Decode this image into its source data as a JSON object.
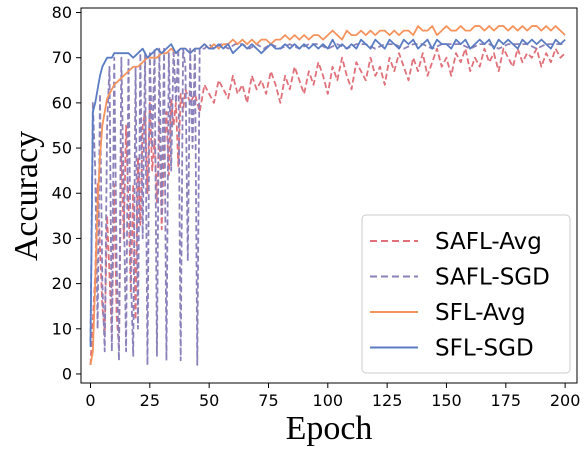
{
  "chart_data": {
    "type": "line",
    "title": "",
    "xlabel": "Epoch",
    "ylabel": "Accuracy",
    "xlim": [
      -4,
      205
    ],
    "ylim": [
      -2,
      81
    ],
    "xticks": [
      0,
      25,
      50,
      75,
      100,
      125,
      150,
      175,
      200
    ],
    "yticks": [
      0,
      10,
      20,
      30,
      40,
      50,
      60,
      70,
      80
    ],
    "grid": false,
    "legend_position": "bottom-right",
    "series": [
      {
        "name": "SAFL-Avg",
        "color": "#e0707a",
        "dash": "dashed",
        "x": [
          0,
          1,
          2,
          3,
          4,
          5,
          6,
          7,
          8,
          9,
          10,
          11,
          12,
          13,
          14,
          15,
          16,
          17,
          18,
          19,
          20,
          21,
          22,
          23,
          24,
          25,
          26,
          27,
          28,
          29,
          30,
          31,
          32,
          33,
          34,
          35,
          36,
          37,
          38,
          39,
          40,
          42,
          44,
          46,
          48,
          50,
          52,
          54,
          56,
          58,
          60,
          62,
          64,
          66,
          68,
          70,
          72,
          74,
          76,
          78,
          80,
          82,
          84,
          86,
          88,
          90,
          92,
          94,
          96,
          98,
          100,
          102,
          104,
          106,
          108,
          110,
          112,
          114,
          116,
          118,
          120,
          122,
          124,
          126,
          128,
          130,
          132,
          134,
          136,
          138,
          140,
          142,
          144,
          146,
          148,
          150,
          152,
          154,
          156,
          158,
          160,
          162,
          164,
          166,
          168,
          170,
          172,
          174,
          176,
          178,
          180,
          182,
          184,
          186,
          188,
          190,
          192,
          194,
          196,
          198,
          200
        ],
        "values": [
          2,
          12,
          22,
          42,
          28,
          15,
          9,
          35,
          22,
          8,
          42,
          13,
          6,
          50,
          30,
          55,
          38,
          18,
          42,
          12,
          48,
          33,
          55,
          58,
          40,
          60,
          45,
          52,
          38,
          56,
          32,
          50,
          58,
          44,
          61,
          55,
          60,
          46,
          62,
          58,
          63,
          60,
          62,
          58,
          64,
          62,
          60,
          65,
          63,
          61,
          66,
          62,
          64,
          60,
          66,
          63,
          65,
          62,
          67,
          64,
          60,
          66,
          63,
          68,
          65,
          62,
          67,
          64,
          69,
          66,
          62,
          68,
          65,
          70,
          66,
          63,
          69,
          67,
          65,
          70,
          66,
          68,
          64,
          70,
          67,
          71,
          68,
          65,
          70,
          67,
          71,
          66,
          69,
          72,
          68,
          70,
          66,
          71,
          69,
          72,
          67,
          70,
          68,
          72,
          69,
          71,
          67,
          72,
          70,
          68,
          72,
          69,
          71,
          70,
          72,
          68,
          71,
          69,
          72,
          70,
          71
        ]
      },
      {
        "name": "SAFL-SGD",
        "color": "#8c80bb",
        "dash": "dashed",
        "x": [
          0,
          1,
          2,
          3,
          4,
          5,
          6,
          7,
          8,
          9,
          10,
          11,
          12,
          13,
          14,
          15,
          16,
          17,
          18,
          19,
          20,
          21,
          22,
          23,
          24,
          25,
          26,
          27,
          28,
          29,
          30,
          31,
          32,
          33,
          34,
          35,
          36,
          37,
          38,
          39,
          40,
          41,
          42,
          43,
          44,
          45,
          46,
          48,
          50,
          52,
          55,
          58,
          61,
          64,
          67,
          70,
          73,
          76,
          80,
          84,
          88,
          92,
          96,
          100,
          104,
          108,
          112,
          116,
          120,
          124,
          128,
          132,
          136,
          140,
          144,
          148,
          152,
          156,
          160,
          164,
          168,
          172,
          176,
          180,
          184,
          188,
          192,
          196,
          200
        ],
        "values": [
          7,
          60,
          45,
          10,
          62,
          20,
          5,
          55,
          68,
          5,
          70,
          25,
          3,
          70,
          40,
          5,
          70,
          22,
          4,
          68,
          10,
          71,
          30,
          71,
          2,
          71,
          50,
          72,
          4,
          72,
          35,
          72,
          3,
          71,
          45,
          72,
          60,
          72,
          3,
          72,
          68,
          25,
          72,
          50,
          72,
          2,
          72,
          72,
          73,
          72,
          73,
          72,
          73,
          73,
          72,
          73,
          72,
          73,
          72,
          73,
          72,
          73,
          73,
          72,
          73,
          72,
          73,
          73,
          72,
          73,
          73,
          72,
          73,
          73,
          72,
          73,
          73,
          73,
          72,
          73,
          73,
          72,
          73,
          73,
          73,
          72,
          73,
          73,
          73
        ]
      },
      {
        "name": "SFL-Avg",
        "color": "#f5935d",
        "dash": "solid",
        "x": [
          0,
          1,
          2,
          3,
          4,
          5,
          6,
          7,
          8,
          9,
          10,
          12,
          14,
          16,
          18,
          20,
          22,
          24,
          26,
          28,
          30,
          32,
          34,
          36,
          38,
          40,
          42,
          44,
          46,
          48,
          50,
          52,
          54,
          56,
          58,
          60,
          62,
          64,
          66,
          68,
          70,
          72,
          74,
          76,
          78,
          80,
          82,
          84,
          86,
          88,
          90,
          92,
          94,
          96,
          98,
          100,
          102,
          104,
          106,
          108,
          110,
          112,
          114,
          116,
          118,
          120,
          122,
          124,
          126,
          128,
          130,
          132,
          134,
          136,
          138,
          140,
          142,
          144,
          146,
          148,
          150,
          152,
          154,
          156,
          158,
          160,
          162,
          164,
          166,
          168,
          170,
          172,
          174,
          176,
          178,
          180,
          182,
          184,
          186,
          188,
          190,
          192,
          194,
          196,
          198,
          200
        ],
        "values": [
          2,
          5,
          20,
          38,
          48,
          55,
          58,
          61,
          62,
          63,
          64,
          65,
          66,
          67,
          68,
          68,
          69,
          70,
          70,
          70,
          71,
          71,
          72,
          71,
          72,
          72,
          71,
          72,
          72,
          73,
          72,
          73,
          72,
          73,
          73,
          74,
          73,
          74,
          73,
          74,
          73,
          74,
          74,
          73,
          74,
          74,
          75,
          74,
          75,
          74,
          75,
          74,
          75,
          75,
          74,
          75,
          76,
          75,
          74,
          76,
          75,
          75,
          76,
          75,
          76,
          75,
          76,
          76,
          75,
          76,
          75,
          76,
          76,
          75,
          77,
          76,
          76,
          77,
          75,
          76,
          77,
          76,
          76,
          77,
          76,
          76,
          77,
          77,
          76,
          77,
          76,
          77,
          77,
          76,
          77,
          76,
          77,
          76,
          77,
          77,
          76,
          77,
          76,
          77,
          76,
          75
        ]
      },
      {
        "name": "SFL-SGD",
        "color": "#5b7cc2",
        "dash": "solid",
        "x": [
          0,
          1,
          2,
          3,
          4,
          5,
          6,
          7,
          8,
          9,
          10,
          12,
          14,
          16,
          18,
          20,
          22,
          24,
          26,
          28,
          30,
          32,
          34,
          36,
          38,
          40,
          42,
          44,
          46,
          48,
          50,
          52,
          54,
          56,
          58,
          60,
          62,
          64,
          66,
          68,
          70,
          72,
          74,
          76,
          78,
          80,
          82,
          84,
          86,
          88,
          90,
          92,
          94,
          96,
          98,
          100,
          102,
          104,
          106,
          108,
          110,
          112,
          114,
          116,
          118,
          120,
          122,
          124,
          126,
          128,
          130,
          132,
          134,
          136,
          138,
          140,
          142,
          144,
          146,
          148,
          150,
          152,
          154,
          156,
          158,
          160,
          162,
          164,
          166,
          168,
          170,
          172,
          174,
          176,
          178,
          180,
          182,
          184,
          186,
          188,
          190,
          192,
          194,
          196,
          198,
          200
        ],
        "values": [
          6,
          58,
          60,
          63,
          66,
          68,
          69,
          70,
          70,
          70,
          71,
          71,
          71,
          71,
          70,
          71,
          72,
          70,
          71,
          72,
          71,
          72,
          73,
          71,
          72,
          72,
          71,
          72,
          72,
          73,
          72,
          72,
          73,
          72,
          73,
          71,
          72,
          73,
          72,
          73,
          72,
          71,
          72,
          73,
          72,
          72,
          73,
          72,
          73,
          72,
          73,
          72,
          73,
          72,
          73,
          72,
          74,
          72,
          73,
          72,
          73,
          72,
          74,
          73,
          72,
          74,
          73,
          72,
          74,
          73,
          72,
          74,
          73,
          74,
          72,
          73,
          74,
          72,
          74,
          73,
          73,
          72,
          74,
          73,
          74,
          72,
          73,
          74,
          73,
          74,
          72,
          74,
          73,
          74,
          73,
          72,
          74,
          73,
          74,
          73,
          74,
          73,
          72,
          74,
          73,
          74
        ]
      }
    ]
  }
}
